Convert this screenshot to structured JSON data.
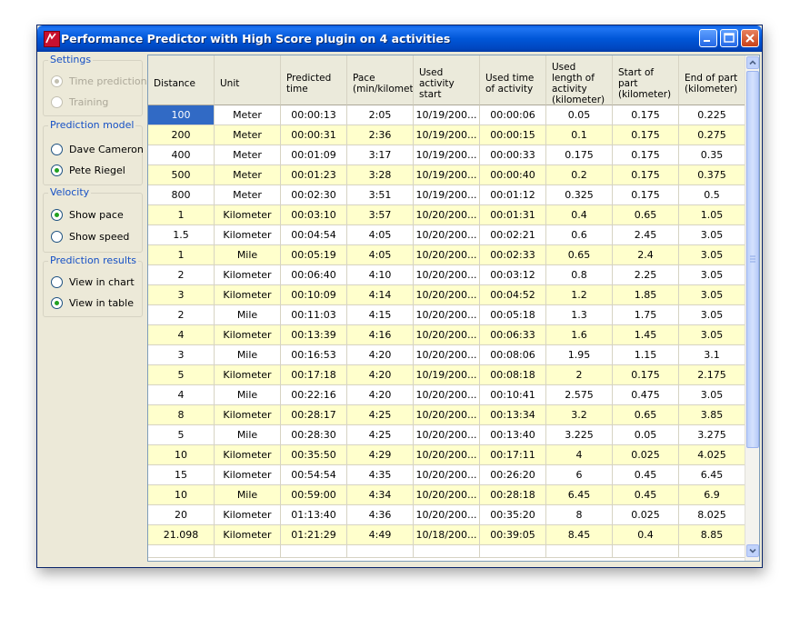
{
  "window": {
    "title": "Performance Predictor with High Score plugin on 4 activities"
  },
  "settings": {
    "title": "Settings",
    "options": [
      {
        "label": "Time prediction",
        "checked": true,
        "disabled": true
      },
      {
        "label": "Training",
        "checked": false,
        "disabled": true
      }
    ]
  },
  "prediction_model": {
    "title": "Prediction model",
    "options": [
      {
        "label": "Dave Cameron",
        "checked": false
      },
      {
        "label": "Pete Riegel",
        "checked": true
      }
    ]
  },
  "velocity": {
    "title": "Velocity",
    "options": [
      {
        "label": "Show pace",
        "checked": true
      },
      {
        "label": "Show speed",
        "checked": false
      }
    ]
  },
  "prediction_results": {
    "title": "Prediction results",
    "options": [
      {
        "label": "View in chart",
        "checked": false
      },
      {
        "label": "View in table",
        "checked": true
      }
    ]
  },
  "table": {
    "columns": [
      "Distance",
      "Unit",
      "Predicted time",
      "Pace (min/kilometer)",
      "Used activity start",
      "Used time of activity",
      "Used length of activity (kilometer)",
      "Start of part (kilometer)",
      "End of part (kilometer)"
    ],
    "rows": [
      [
        "100",
        "Meter",
        "00:00:13",
        "2:05",
        "10/19/200...",
        "00:00:06",
        "0.05",
        "0.175",
        "0.225"
      ],
      [
        "200",
        "Meter",
        "00:00:31",
        "2:36",
        "10/19/200...",
        "00:00:15",
        "0.1",
        "0.175",
        "0.275"
      ],
      [
        "400",
        "Meter",
        "00:01:09",
        "3:17",
        "10/19/200...",
        "00:00:33",
        "0.175",
        "0.175",
        "0.35"
      ],
      [
        "500",
        "Meter",
        "00:01:23",
        "3:28",
        "10/19/200...",
        "00:00:40",
        "0.2",
        "0.175",
        "0.375"
      ],
      [
        "800",
        "Meter",
        "00:02:30",
        "3:51",
        "10/19/200...",
        "00:01:12",
        "0.325",
        "0.175",
        "0.5"
      ],
      [
        "1",
        "Kilometer",
        "00:03:10",
        "3:57",
        "10/20/200...",
        "00:01:31",
        "0.4",
        "0.65",
        "1.05"
      ],
      [
        "1.5",
        "Kilometer",
        "00:04:54",
        "4:05",
        "10/20/200...",
        "00:02:21",
        "0.6",
        "2.45",
        "3.05"
      ],
      [
        "1",
        "Mile",
        "00:05:19",
        "4:05",
        "10/20/200...",
        "00:02:33",
        "0.65",
        "2.4",
        "3.05"
      ],
      [
        "2",
        "Kilometer",
        "00:06:40",
        "4:10",
        "10/20/200...",
        "00:03:12",
        "0.8",
        "2.25",
        "3.05"
      ],
      [
        "3",
        "Kilometer",
        "00:10:09",
        "4:14",
        "10/20/200...",
        "00:04:52",
        "1.2",
        "1.85",
        "3.05"
      ],
      [
        "2",
        "Mile",
        "00:11:03",
        "4:15",
        "10/20/200...",
        "00:05:18",
        "1.3",
        "1.75",
        "3.05"
      ],
      [
        "4",
        "Kilometer",
        "00:13:39",
        "4:16",
        "10/20/200...",
        "00:06:33",
        "1.6",
        "1.45",
        "3.05"
      ],
      [
        "3",
        "Mile",
        "00:16:53",
        "4:20",
        "10/20/200...",
        "00:08:06",
        "1.95",
        "1.15",
        "3.1"
      ],
      [
        "5",
        "Kilometer",
        "00:17:18",
        "4:20",
        "10/19/200...",
        "00:08:18",
        "2",
        "0.175",
        "2.175"
      ],
      [
        "4",
        "Mile",
        "00:22:16",
        "4:20",
        "10/20/200...",
        "00:10:41",
        "2.575",
        "0.475",
        "3.05"
      ],
      [
        "8",
        "Kilometer",
        "00:28:17",
        "4:25",
        "10/20/200...",
        "00:13:34",
        "3.2",
        "0.65",
        "3.85"
      ],
      [
        "5",
        "Mile",
        "00:28:30",
        "4:25",
        "10/20/200...",
        "00:13:40",
        "3.225",
        "0.05",
        "3.275"
      ],
      [
        "10",
        "Kilometer",
        "00:35:50",
        "4:29",
        "10/20/200...",
        "00:17:11",
        "4",
        "0.025",
        "4.025"
      ],
      [
        "15",
        "Kilometer",
        "00:54:54",
        "4:35",
        "10/20/200...",
        "00:26:20",
        "6",
        "0.45",
        "6.45"
      ],
      [
        "10",
        "Mile",
        "00:59:00",
        "4:34",
        "10/20/200...",
        "00:28:18",
        "6.45",
        "0.45",
        "6.9"
      ],
      [
        "20",
        "Kilometer",
        "01:13:40",
        "4:36",
        "10/20/200...",
        "00:35:20",
        "8",
        "0.025",
        "8.025"
      ],
      [
        "21.098",
        "Kilometer",
        "01:21:29",
        "4:49",
        "10/18/200...",
        "00:39:05",
        "8.45",
        "0.4",
        "8.85"
      ]
    ],
    "selected_row": 0
  }
}
